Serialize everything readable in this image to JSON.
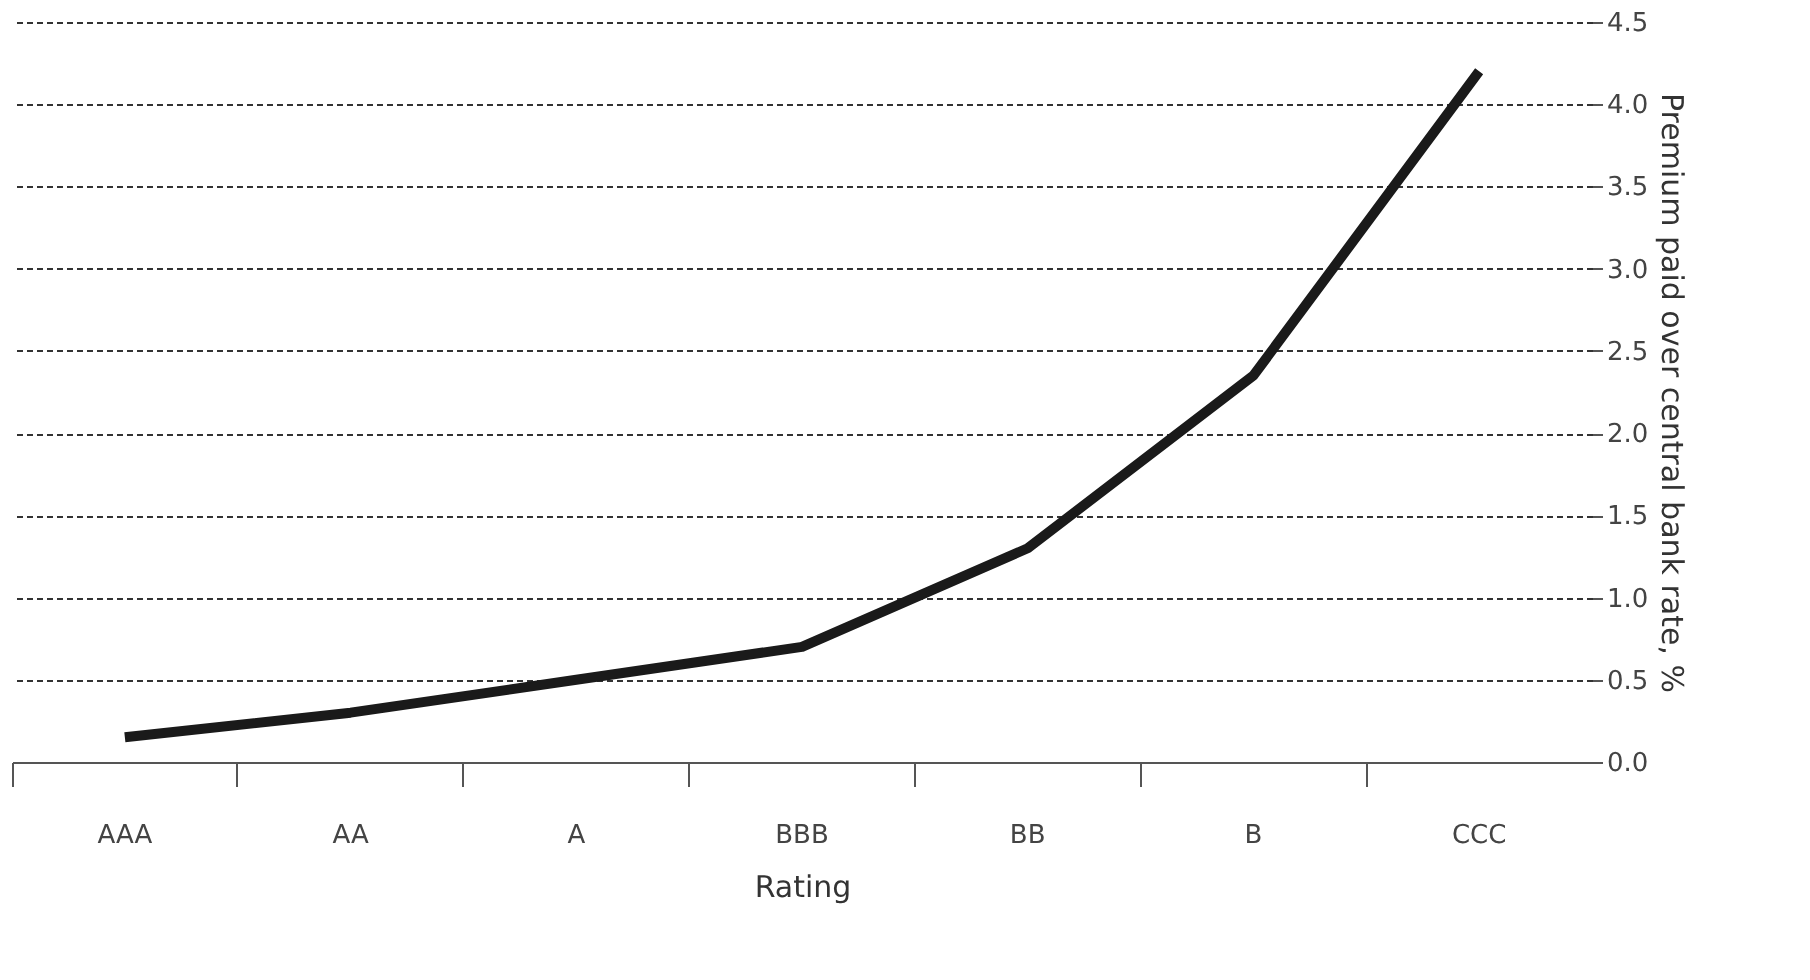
{
  "chart_data": {
    "type": "line",
    "xlabel": "Rating",
    "ylabel": "Premium paid over central bank rate, %",
    "categories": [
      "AAA",
      "AA",
      "A",
      "BBB",
      "BB",
      "B",
      "CCC"
    ],
    "series": [
      {
        "color": "#1a1a1a",
        "values": [
          0.15,
          0.3,
          0.5,
          0.7,
          1.3,
          2.35,
          4.2
        ]
      }
    ],
    "ylim": [
      0,
      4.5
    ],
    "yticks": [
      {
        "value": 0,
        "label": "0.0"
      },
      0.5,
      {
        "value": 1,
        "label": "1.0"
      },
      1.5,
      {
        "value": 2,
        "label": "2.0"
      },
      2.5,
      {
        "value": 3,
        "label": "3.0"
      },
      3.5,
      {
        "value": 4,
        "label": "4.0"
      },
      4.5
    ],
    "grid": "y",
    "marker": "none",
    "line_style": "solid"
  }
}
